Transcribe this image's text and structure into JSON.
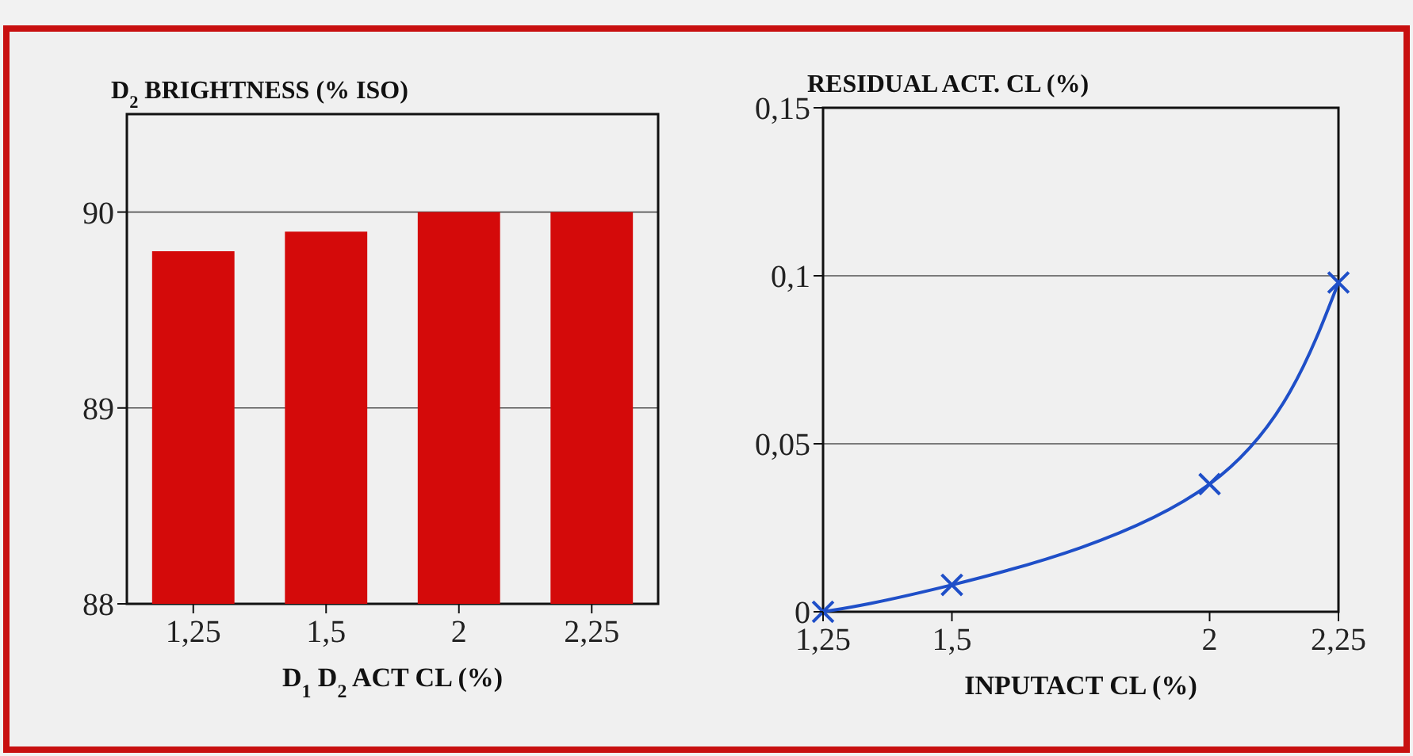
{
  "chart_data": [
    {
      "type": "bar",
      "title": "D$_{2}$ BRIGHTNESS (% ISO)",
      "xlabel": "D$_{1}$D$_{2}$ ACT CL (%)",
      "categories": [
        "1,25",
        "1,5",
        "2",
        "2,25"
      ],
      "values": [
        89.8,
        89.9,
        90,
        90
      ],
      "color": "#d40a0a",
      "ylim": [
        88,
        90.5
      ],
      "yticks": [
        88,
        89,
        90
      ],
      "grid": "y"
    },
    {
      "type": "line",
      "title": "RESIDUAL ACT. CL (%)",
      "xlabel": "INPUTACT CL (%)",
      "x": [
        1.25,
        1.5,
        2,
        2.25
      ],
      "xlim": [
        1.25,
        2.25
      ],
      "xticks": [
        {
          "value": 1.25,
          "label": "1,25"
        },
        {
          "value": 1.5,
          "label": "1,5"
        },
        {
          "value": 2,
          "label": "2"
        },
        {
          "value": 2.25,
          "label": "2,25"
        }
      ],
      "ylim": [
        0,
        0.15
      ],
      "yticks": [
        0,
        {
          "value": 0.05,
          "label": "0,05"
        },
        {
          "value": 0.1,
          "label": "0,1"
        },
        {
          "value": 0.15,
          "label": "0,15"
        }
      ],
      "series": [
        {
          "color": "#1f4fc8",
          "values": [
            0,
            0.008,
            0.038,
            0.098
          ]
        }
      ],
      "marker": "cross",
      "line_style": "solid",
      "grid": "y"
    }
  ]
}
